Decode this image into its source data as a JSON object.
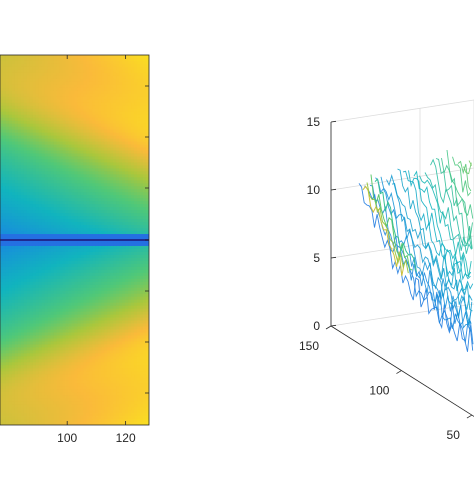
{
  "chart_data": [
    {
      "type": "heatmap",
      "colormap": "parula",
      "xlim": [
        0,
        128
      ],
      "x_ticks": [
        {
          "value": 100,
          "label": "100"
        },
        {
          "value": 120,
          "label": "120"
        }
      ],
      "y_ticks_visible": false,
      "description_values": {
        "symmetry_axis": "horizontal center line (dark blue)",
        "pattern": "warm yellow at top-right and bottom-right corners, teal/blue near left and center line, orange arcs around mid-right"
      },
      "colors": {
        "center_line": "#1f2a8f",
        "low": "#3e26a8",
        "mid": "#26b4c2",
        "high": "#f9fb0e"
      }
    },
    {
      "type": "surface-mesh",
      "colormap": "parula",
      "z_ticks": [
        {
          "value": 0,
          "label": "0"
        },
        {
          "value": 5,
          "label": "5"
        },
        {
          "value": 10,
          "label": "10"
        },
        {
          "value": 15,
          "label": "15"
        }
      ],
      "zlim": [
        0,
        15
      ],
      "y_ticks": [
        {
          "value": 150,
          "label": "150"
        },
        {
          "value": 100,
          "label": "100"
        },
        {
          "value": 50,
          "label": "50"
        }
      ],
      "grid": true,
      "profile": {
        "y_start": 150,
        "y_end": 40,
        "z_values": [
          10.5,
          9.5,
          8.2,
          7.0,
          6.2,
          5.6,
          5.2,
          4.9,
          4.6,
          4.4,
          4.3,
          4.2,
          4.1,
          4.3,
          4.8,
          5.4,
          6.0
        ],
        "noise_amplitude": 1.4
      }
    }
  ]
}
